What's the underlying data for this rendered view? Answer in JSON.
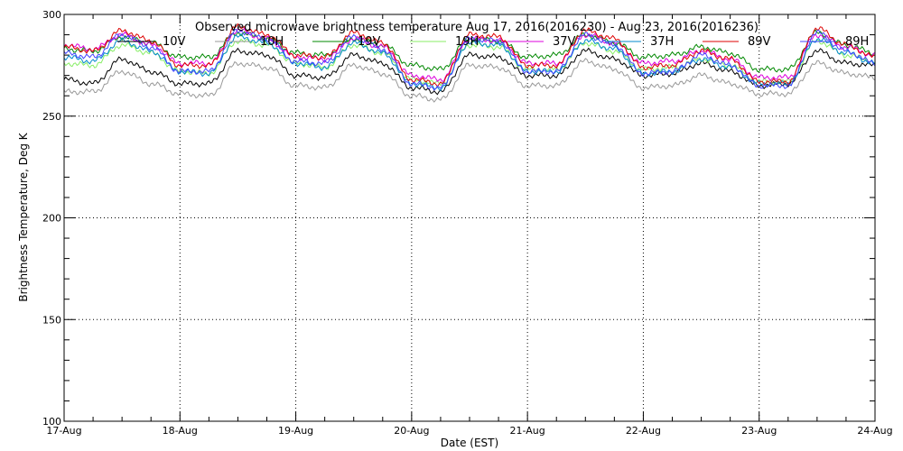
{
  "chart_data": {
    "type": "line",
    "title": "Observed microwave brightness temperature Aug 17, 2016(2016230) - Aug 23, 2016(2016236)",
    "xlabel": "Date (EST)",
    "ylabel": "Brightness Temperature, Deg K",
    "xlim": [
      "2016-08-17",
      "2016-08-24"
    ],
    "ylim": [
      100,
      300
    ],
    "x_tick_labels": [
      "17-Aug",
      "18-Aug",
      "19-Aug",
      "20-Aug",
      "21-Aug",
      "22-Aug",
      "23-Aug",
      "24-Aug"
    ],
    "y_tick_labels": [
      "100",
      "150",
      "200",
      "250",
      "300"
    ],
    "grid": true,
    "legend_position": "top",
    "x": [
      "2016-08-17 00:00",
      "2016-08-17 06:00",
      "2016-08-17 12:00",
      "2016-08-17 18:00",
      "2016-08-18 00:00",
      "2016-08-18 06:00",
      "2016-08-18 12:00",
      "2016-08-18 18:00",
      "2016-08-19 00:00",
      "2016-08-19 06:00",
      "2016-08-19 12:00",
      "2016-08-19 18:00",
      "2016-08-20 00:00",
      "2016-08-20 06:00",
      "2016-08-20 12:00",
      "2016-08-20 18:00",
      "2016-08-21 00:00",
      "2016-08-21 06:00",
      "2016-08-21 12:00",
      "2016-08-21 18:00",
      "2016-08-22 00:00",
      "2016-08-22 06:00",
      "2016-08-22 12:00",
      "2016-08-22 18:00",
      "2016-08-23 00:00",
      "2016-08-23 06:00",
      "2016-08-23 12:00",
      "2016-08-23 18:00",
      "2016-08-24 00:00"
    ],
    "series": [
      {
        "name": "10V",
        "color": "#000000",
        "values": [
          268,
          266,
          278,
          272,
          266,
          266,
          282,
          280,
          270,
          269,
          280,
          276,
          264,
          262,
          280,
          279,
          270,
          270,
          282,
          278,
          270,
          271,
          276,
          272,
          265,
          266,
          282,
          276,
          275
        ]
      },
      {
        "name": "10H",
        "color": "#999999",
        "values": [
          262,
          262,
          272,
          266,
          261,
          260,
          276,
          274,
          265,
          264,
          275,
          271,
          260,
          258,
          275,
          274,
          265,
          265,
          277,
          273,
          264,
          265,
          270,
          266,
          261,
          261,
          276,
          271,
          269
        ]
      },
      {
        "name": "19V",
        "color": "#008800",
        "values": [
          283,
          282,
          289,
          286,
          279,
          279,
          291,
          288,
          281,
          280,
          288,
          285,
          275,
          273,
          288,
          287,
          279,
          280,
          290,
          286,
          279,
          280,
          284,
          281,
          273,
          273,
          291,
          285,
          281
        ]
      },
      {
        "name": "19H",
        "color": "#88ee66",
        "values": [
          276,
          275,
          285,
          281,
          272,
          271,
          287,
          285,
          276,
          274,
          285,
          281,
          268,
          266,
          285,
          284,
          273,
          273,
          286,
          282,
          273,
          274,
          278,
          275,
          267,
          267,
          287,
          280,
          277
        ]
      },
      {
        "name": "37V",
        "color": "#dd00dd",
        "values": [
          285,
          283,
          290,
          285,
          276,
          276,
          292,
          288,
          279,
          278,
          288,
          284,
          270,
          268,
          288,
          287,
          276,
          276,
          290,
          286,
          276,
          277,
          282,
          278,
          269,
          269,
          290,
          284,
          280
        ]
      },
      {
        "name": "37H",
        "color": "#0088cc",
        "values": [
          279,
          277,
          287,
          282,
          272,
          271,
          289,
          286,
          276,
          274,
          286,
          281,
          266,
          264,
          286,
          285,
          272,
          272,
          287,
          283,
          271,
          272,
          278,
          274,
          266,
          266,
          288,
          281,
          276
        ]
      },
      {
        "name": "89V",
        "color": "#dd0000",
        "values": [
          284,
          282,
          292,
          287,
          275,
          275,
          294,
          290,
          280,
          279,
          291,
          286,
          268,
          266,
          290,
          289,
          275,
          275,
          292,
          288,
          274,
          275,
          282,
          278,
          267,
          267,
          293,
          285,
          279
        ]
      },
      {
        "name": "89H",
        "color": "#4444ff",
        "values": [
          281,
          279,
          290,
          284,
          272,
          272,
          292,
          288,
          277,
          276,
          289,
          283,
          266,
          264,
          288,
          287,
          272,
          272,
          290,
          285,
          271,
          272,
          280,
          275,
          265,
          265,
          291,
          282,
          276
        ]
      }
    ]
  }
}
